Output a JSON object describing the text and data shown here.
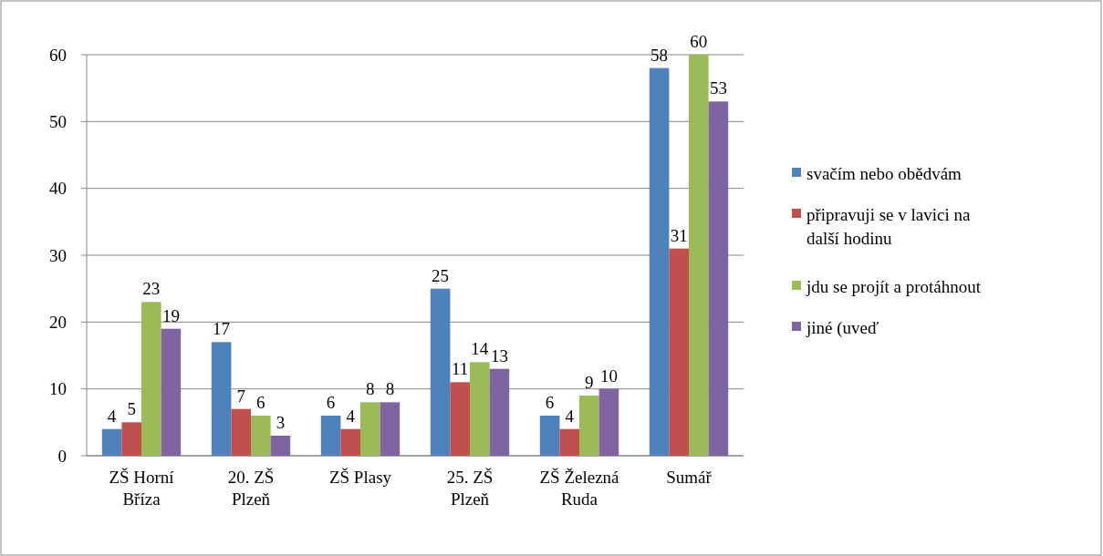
{
  "chart_data": {
    "type": "bar",
    "categories": [
      "ZŠ Horní Bříza",
      "20. ZŠ Plzeň",
      "ZŠ Plasy",
      "25. ZŠ Plzeň",
      "ZŠ Železná Ruda",
      "Sumář"
    ],
    "series": [
      {
        "name": "svačím nebo obědvám",
        "color": "#4f81bd",
        "values": [
          4,
          17,
          6,
          25,
          6,
          58
        ]
      },
      {
        "name": "připravuji se v lavici na další hodinu",
        "color": "#c0504d",
        "values": [
          5,
          7,
          4,
          11,
          4,
          31
        ]
      },
      {
        "name": "jdu se projít a protáhnout",
        "color": "#9bbb59",
        "values": [
          23,
          6,
          8,
          14,
          9,
          60
        ]
      },
      {
        "name": "jiné (uveď",
        "color": "#8064a2",
        "values": [
          19,
          3,
          8,
          13,
          10,
          53
        ]
      }
    ],
    "ylim": [
      0,
      60
    ],
    "yticks": [
      0,
      10,
      20,
      30,
      40,
      50,
      60
    ],
    "grid": "y",
    "legend": "right",
    "data_labels": true
  }
}
